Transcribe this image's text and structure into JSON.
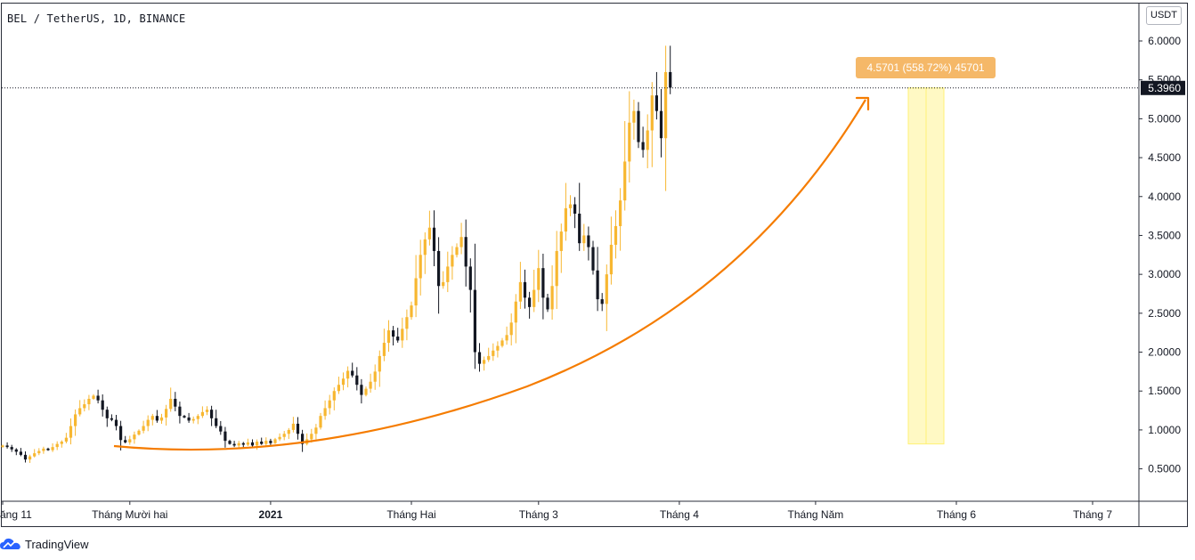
{
  "header": {
    "symbol": "BEL / TetherUS, 1D, BINANCE",
    "currency_button": "USDT"
  },
  "brand": {
    "name": "TradingView"
  },
  "colors": {
    "up": "#f7b731",
    "down": "#131722",
    "curve": "#f57c00",
    "label_bg": "#f5b868",
    "band": "#fff9c4"
  },
  "last_price": {
    "value": 5.396,
    "text": "5.3960"
  },
  "measure_label": {
    "text": "4.5701 (558.72%) 45701"
  },
  "chart_data": {
    "type": "candlestick",
    "title": "BEL / TetherUS, 1D, BINANCE",
    "ylim": [
      0.3,
      6.3
    ],
    "y_ticks": [
      "0.5000",
      "1.0000",
      "1.5000",
      "2.0000",
      "2.5000",
      "3.0000",
      "3.5000",
      "4.0000",
      "4.5000",
      "5.0000",
      "5.5000",
      "6.0000"
    ],
    "x_ticks": [
      {
        "label": "ăng 11",
        "day": 0,
        "bold": false
      },
      {
        "label": "Tháng Mười hai",
        "day": 28,
        "bold": false
      },
      {
        "label": "2021",
        "day": 59,
        "bold": true
      },
      {
        "label": "Tháng Hai",
        "day": 90,
        "bold": false
      },
      {
        "label": "Tháng 3",
        "day": 118,
        "bold": false
      },
      {
        "label": "Tháng 4",
        "day": 149,
        "bold": false
      },
      {
        "label": "Tháng Năm",
        "day": 179,
        "bold": false
      },
      {
        "label": "Tháng 6",
        "day": 210,
        "bold": false
      },
      {
        "label": "Tháng 7",
        "day": 240,
        "bold": false
      }
    ],
    "closes": [
      0.8,
      0.78,
      0.75,
      0.72,
      0.68,
      0.62,
      0.66,
      0.7,
      0.73,
      0.76,
      0.74,
      0.78,
      0.82,
      0.85,
      0.9,
      1.05,
      1.2,
      1.28,
      1.33,
      1.4,
      1.44,
      1.38,
      1.26,
      1.15,
      1.13,
      1.05,
      0.87,
      0.84,
      0.88,
      0.94,
      0.99,
      1.05,
      1.13,
      1.18,
      1.12,
      1.16,
      1.27,
      1.4,
      1.3,
      1.18,
      1.16,
      1.12,
      1.14,
      1.18,
      1.23,
      1.26,
      1.15,
      1.05,
      0.98,
      0.86,
      0.82,
      0.8,
      0.83,
      0.81,
      0.84,
      0.8,
      0.85,
      0.82,
      0.86,
      0.83,
      0.88,
      0.91,
      0.95,
      1.0,
      1.08,
      0.95,
      0.82,
      0.88,
      0.95,
      1.03,
      1.18,
      1.28,
      1.38,
      1.5,
      1.58,
      1.66,
      1.76,
      1.7,
      1.58,
      1.45,
      1.53,
      1.62,
      1.75,
      1.95,
      2.12,
      2.28,
      2.2,
      2.15,
      2.3,
      2.45,
      2.6,
      2.95,
      3.25,
      3.45,
      3.6,
      3.3,
      2.85,
      2.9,
      3.1,
      3.25,
      3.35,
      3.48,
      3.1,
      2.8,
      2.0,
      1.85,
      1.9,
      1.95,
      2.02,
      2.08,
      2.15,
      2.22,
      2.38,
      2.65,
      2.9,
      2.7,
      2.58,
      2.8,
      3.08,
      2.7,
      2.55,
      2.85,
      3.3,
      3.55,
      3.85,
      3.9,
      3.78,
      3.4,
      3.5,
      3.35,
      3.05,
      2.68,
      2.62,
      3.0,
      3.38,
      3.62,
      3.95,
      4.45,
      4.95,
      5.1,
      4.7,
      4.6,
      4.85,
      5.3,
      5.1,
      4.75,
      5.6,
      5.4
    ],
    "measure": {
      "change": 4.5701,
      "percent": "558.72%",
      "bars": 45701
    }
  }
}
